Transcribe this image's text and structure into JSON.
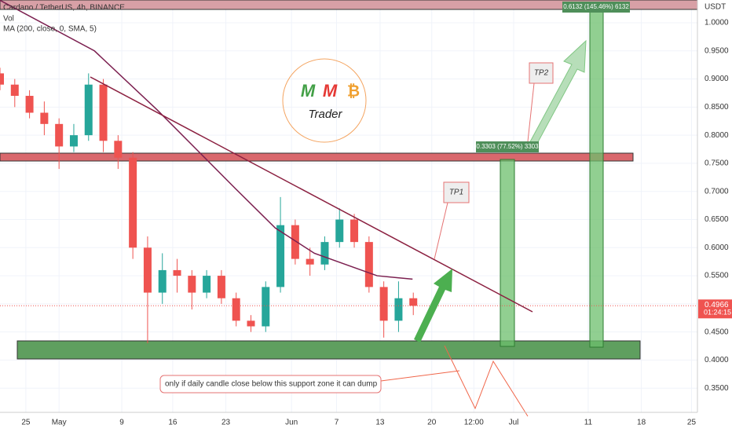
{
  "chart_data": {
    "type": "candlestick",
    "title": "Cardano / TetherUS, 4h, BINANCE",
    "volume_label": "Vol",
    "unit": "USDT",
    "x": [
      -8,
      -6,
      -4,
      -2,
      0,
      2,
      4,
      6,
      8,
      10,
      12,
      14,
      16,
      18,
      20,
      22,
      24,
      26,
      28,
      30,
      32,
      34,
      36,
      38,
      40,
      42,
      44,
      46,
      48
    ],
    "ohlc": [
      [
        0.91,
        0.92,
        0.88,
        0.89
      ],
      [
        0.89,
        0.9,
        0.85,
        0.87
      ],
      [
        0.87,
        0.88,
        0.83,
        0.84
      ],
      [
        0.84,
        0.86,
        0.8,
        0.82
      ],
      [
        0.82,
        0.83,
        0.74,
        0.78
      ],
      [
        0.78,
        0.82,
        0.77,
        0.8
      ],
      [
        0.8,
        0.91,
        0.79,
        0.89
      ],
      [
        0.89,
        0.9,
        0.77,
        0.79
      ],
      [
        0.79,
        0.8,
        0.74,
        0.76
      ],
      [
        0.76,
        0.77,
        0.58,
        0.6
      ],
      [
        0.6,
        0.62,
        0.43,
        0.52
      ],
      [
        0.52,
        0.59,
        0.5,
        0.56
      ],
      [
        0.56,
        0.58,
        0.52,
        0.55
      ],
      [
        0.55,
        0.56,
        0.49,
        0.52
      ],
      [
        0.52,
        0.56,
        0.51,
        0.55
      ],
      [
        0.55,
        0.56,
        0.5,
        0.51
      ],
      [
        0.51,
        0.52,
        0.46,
        0.47
      ],
      [
        0.47,
        0.48,
        0.45,
        0.46
      ],
      [
        0.46,
        0.54,
        0.45,
        0.53
      ],
      [
        0.53,
        0.69,
        0.52,
        0.64
      ],
      [
        0.64,
        0.65,
        0.57,
        0.58
      ],
      [
        0.58,
        0.6,
        0.55,
        0.57
      ],
      [
        0.57,
        0.62,
        0.56,
        0.61
      ],
      [
        0.61,
        0.67,
        0.6,
        0.65
      ],
      [
        0.65,
        0.66,
        0.6,
        0.61
      ],
      [
        0.61,
        0.62,
        0.52,
        0.53
      ],
      [
        0.53,
        0.54,
        0.44,
        0.47
      ],
      [
        0.47,
        0.54,
        0.45,
        0.51
      ],
      [
        0.51,
        0.52,
        0.48,
        0.4966
      ]
    ],
    "up_color": "#26a69a",
    "down_color": "#ef5350",
    "ma": {
      "name": "MA (200, close, 0, SMA, 5)",
      "color": "#7b1f4f",
      "x": [
        -8,
        4.8,
        13.3,
        18.6,
        23.9,
        29.3,
        34.6,
        39.9,
        43.1,
        47.9
      ],
      "values": [
        1.04,
        0.95,
        0.845,
        0.775,
        0.705,
        0.635,
        0.59,
        0.565,
        0.55,
        0.544
      ]
    },
    "last_price_label": "0.4966",
    "countdown": "01:24:15",
    "xlim": [
      -8,
      86.5
    ],
    "ylim": [
      0.307,
      1.0405
    ],
    "xticks": [
      {
        "value": -4.5,
        "label": "25"
      },
      {
        "value": 0,
        "label": "May"
      },
      {
        "value": 8.5,
        "label": "9"
      },
      {
        "value": 15.4,
        "label": "16"
      },
      {
        "value": 22.6,
        "label": "23"
      },
      {
        "value": 31.5,
        "label": "Jun"
      },
      {
        "value": 37.6,
        "label": "7"
      },
      {
        "value": 43.5,
        "label": "13"
      },
      {
        "value": 50.5,
        "label": "20"
      },
      {
        "value": 56.2,
        "label": "12:00"
      },
      {
        "value": 61.6,
        "label": "Jul"
      },
      {
        "value": 71.7,
        "label": "11"
      },
      {
        "value": 78.9,
        "label": "18"
      },
      {
        "value": 85.7,
        "label": "25"
      }
    ],
    "yticks": [
      {
        "value": 0.35,
        "label": "0.3500"
      },
      {
        "value": 0.4,
        "label": "0.4000"
      },
      {
        "value": 0.45,
        "label": "0.4500"
      },
      {
        "value": 0.5,
        "label": "0.5000"
      },
      {
        "value": 0.55,
        "label": "0.5500"
      },
      {
        "value": 0.6,
        "label": "0.6000"
      },
      {
        "value": 0.65,
        "label": "0.6500"
      },
      {
        "value": 0.7,
        "label": "0.7000"
      },
      {
        "value": 0.75,
        "label": "0.7500"
      },
      {
        "value": 0.8,
        "label": "0.8000"
      },
      {
        "value": 0.85,
        "label": "0.8500"
      },
      {
        "value": 0.9,
        "label": "0.9000"
      },
      {
        "value": 0.95,
        "label": "0.9500"
      },
      {
        "value": 1.0,
        "label": "1.0000"
      }
    ],
    "annotations": {
      "tp1": "TP1",
      "tp2": "TP2",
      "measure1": "0.3303 (77.52%) 3303",
      "measure2": "0.6132 (145.46%) 6132",
      "note": "only if daily candle close below this support zone it can dump",
      "logo_m1": "M",
      "logo_m2": "M",
      "logo_b": "₿",
      "logo_text": "Trader"
    }
  }
}
